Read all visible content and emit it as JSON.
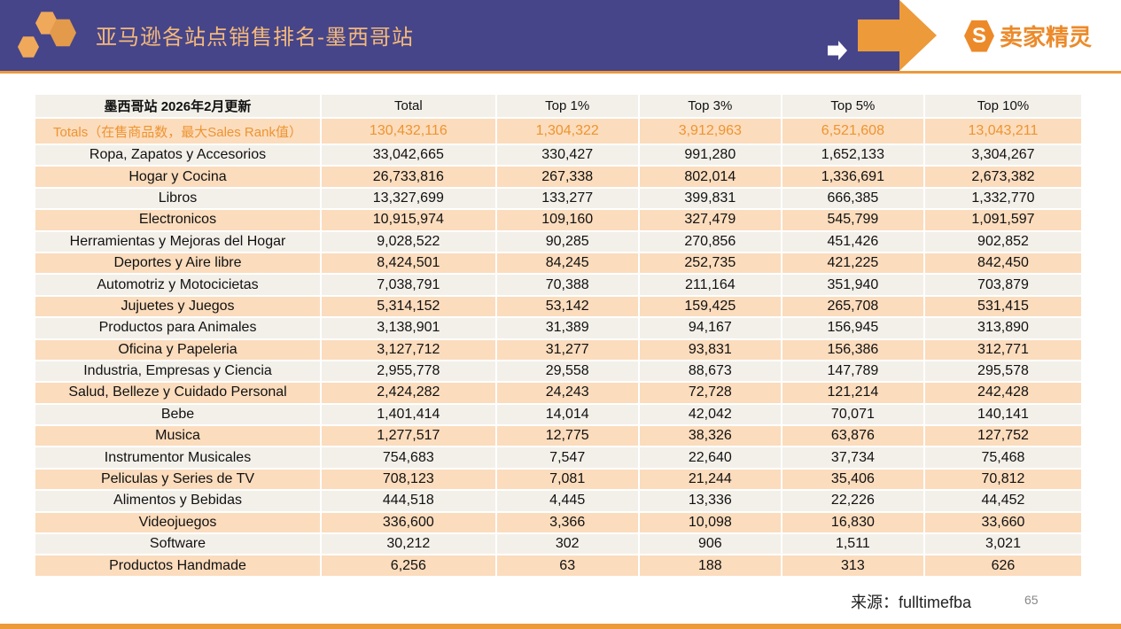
{
  "header": {
    "title": "亚马逊各站点销售排名-墨西哥站",
    "logo_text": "卖家精灵",
    "logo_letter": "S",
    "accent": "#ec9a3a",
    "banner_color": "#46458a"
  },
  "table": {
    "columns": [
      "墨西哥站 2026年2月更新",
      "Total",
      "Top 1%",
      "Top 3%",
      "Top 5%",
      "Top 10%"
    ],
    "totals": [
      "Totals（在售商品数，最大Sales Rank值）",
      "130,432,116",
      "1,304,322",
      "3,912,963",
      "6,521,608",
      "13,043,211"
    ],
    "rows": [
      [
        "Ropa, Zapatos y Accesorios",
        "33,042,665",
        "330,427",
        "991,280",
        "1,652,133",
        "3,304,267"
      ],
      [
        "Hogar y Cocina",
        "26,733,816",
        "267,338",
        "802,014",
        "1,336,691",
        "2,673,382"
      ],
      [
        "Libros",
        "13,327,699",
        "133,277",
        "399,831",
        "666,385",
        "1,332,770"
      ],
      [
        "Electronicos",
        "10,915,974",
        "109,160",
        "327,479",
        "545,799",
        "1,091,597"
      ],
      [
        "Herramientas y Mejoras del Hogar",
        "9,028,522",
        "90,285",
        "270,856",
        "451,426",
        "902,852"
      ],
      [
        "Deportes y Aire libre",
        "8,424,501",
        "84,245",
        "252,735",
        "421,225",
        "842,450"
      ],
      [
        "Automotriz y Motocicietas",
        "7,038,791",
        "70,388",
        "211,164",
        "351,940",
        "703,879"
      ],
      [
        "Jujuetes y Juegos",
        "5,314,152",
        "53,142",
        "159,425",
        "265,708",
        "531,415"
      ],
      [
        "Productos para Animales",
        "3,138,901",
        "31,389",
        "94,167",
        "156,945",
        "313,890"
      ],
      [
        "Oficina y Papeleria",
        "3,127,712",
        "31,277",
        "93,831",
        "156,386",
        "312,771"
      ],
      [
        "Industria, Empresas y Ciencia",
        "2,955,778",
        "29,558",
        "88,673",
        "147,789",
        "295,578"
      ],
      [
        "Salud, Belleze y Cuidado Personal",
        "2,424,282",
        "24,243",
        "72,728",
        "121,214",
        "242,428"
      ],
      [
        "Bebe",
        "1,401,414",
        "14,014",
        "42,042",
        "70,071",
        "140,141"
      ],
      [
        "Musica",
        "1,277,517",
        "12,775",
        "38,326",
        "63,876",
        "127,752"
      ],
      [
        "Instrumentor Musicales",
        "754,683",
        "7,547",
        "22,640",
        "37,734",
        "75,468"
      ],
      [
        "Peliculas y Series de TV",
        "708,123",
        "7,081",
        "21,244",
        "35,406",
        "70,812"
      ],
      [
        "Alimentos y Bebidas",
        "444,518",
        "4,445",
        "13,336",
        "22,226",
        "44,452"
      ],
      [
        "Videojuegos",
        "336,600",
        "3,366",
        "10,098",
        "16,830",
        "33,660"
      ],
      [
        "Software",
        "30,212",
        "302",
        "906",
        "1,511",
        "3,021"
      ],
      [
        "Productos Handmade",
        "6,256",
        "63",
        "188",
        "313",
        "626"
      ]
    ]
  },
  "footer": {
    "source": "来源：fulltimefba",
    "page": "65"
  }
}
